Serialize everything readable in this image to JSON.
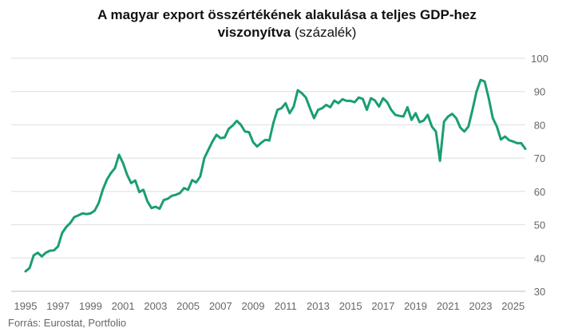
{
  "chart_data": {
    "type": "line",
    "title_bold_line1": "A magyar export összértékének alakulása a teljes GDP-hez",
    "title_bold_line2": "viszonyítva",
    "title_unit": " (százalék)",
    "source": "Forrás: Eurostat, Portfolio",
    "xlabel": "",
    "ylabel": "",
    "xlim": [
      1995,
      2025.75
    ],
    "ylim": [
      30,
      100
    ],
    "x_ticks": [
      1995,
      1997,
      1999,
      2001,
      2003,
      2005,
      2007,
      2009,
      2011,
      2013,
      2015,
      2017,
      2019,
      2021,
      2023,
      2025
    ],
    "y_ticks": [
      30,
      40,
      50,
      60,
      70,
      80,
      90,
      100
    ],
    "grid": "horizontal",
    "line_color": "#1a9e72",
    "series": [
      {
        "name": "Export / GDP",
        "points": [
          [
            1995.0,
            36.0
          ],
          [
            1995.25,
            37.0
          ],
          [
            1995.5,
            40.8
          ],
          [
            1995.75,
            41.6
          ],
          [
            1996.0,
            40.5
          ],
          [
            1996.25,
            41.6
          ],
          [
            1996.5,
            42.2
          ],
          [
            1996.75,
            42.3
          ],
          [
            1997.0,
            43.5
          ],
          [
            1997.25,
            47.5
          ],
          [
            1997.5,
            49.3
          ],
          [
            1997.75,
            50.5
          ],
          [
            1998.0,
            52.3
          ],
          [
            1998.25,
            52.8
          ],
          [
            1998.5,
            53.4
          ],
          [
            1998.75,
            53.2
          ],
          [
            1999.0,
            53.4
          ],
          [
            1999.25,
            54.2
          ],
          [
            1999.5,
            56.5
          ],
          [
            1999.75,
            60.5
          ],
          [
            2000.0,
            63.5
          ],
          [
            2000.25,
            65.5
          ],
          [
            2000.5,
            67.0
          ],
          [
            2000.75,
            71.0
          ],
          [
            2001.0,
            68.5
          ],
          [
            2001.25,
            65.0
          ],
          [
            2001.5,
            62.5
          ],
          [
            2001.75,
            63.3
          ],
          [
            2002.0,
            59.8
          ],
          [
            2002.25,
            60.5
          ],
          [
            2002.5,
            57.0
          ],
          [
            2002.75,
            55.0
          ],
          [
            2003.0,
            55.4
          ],
          [
            2003.25,
            54.8
          ],
          [
            2003.5,
            57.4
          ],
          [
            2003.75,
            57.8
          ],
          [
            2004.0,
            58.7
          ],
          [
            2004.25,
            59.0
          ],
          [
            2004.5,
            59.5
          ],
          [
            2004.75,
            61.0
          ],
          [
            2005.0,
            60.5
          ],
          [
            2005.25,
            63.4
          ],
          [
            2005.5,
            62.7
          ],
          [
            2005.75,
            64.5
          ],
          [
            2006.0,
            70.0
          ],
          [
            2006.25,
            72.5
          ],
          [
            2006.5,
            75.0
          ],
          [
            2006.75,
            77.0
          ],
          [
            2007.0,
            76.0
          ],
          [
            2007.25,
            76.2
          ],
          [
            2007.5,
            78.8
          ],
          [
            2007.75,
            79.8
          ],
          [
            2008.0,
            81.2
          ],
          [
            2008.25,
            80.0
          ],
          [
            2008.5,
            78.0
          ],
          [
            2008.75,
            77.8
          ],
          [
            2009.0,
            74.8
          ],
          [
            2009.25,
            73.5
          ],
          [
            2009.5,
            74.6
          ],
          [
            2009.75,
            75.5
          ],
          [
            2010.0,
            75.3
          ],
          [
            2010.25,
            80.6
          ],
          [
            2010.5,
            84.5
          ],
          [
            2010.75,
            85.0
          ],
          [
            2011.0,
            86.5
          ],
          [
            2011.25,
            83.5
          ],
          [
            2011.5,
            85.5
          ],
          [
            2011.75,
            90.4
          ],
          [
            2012.0,
            89.5
          ],
          [
            2012.25,
            88.2
          ],
          [
            2012.5,
            85.0
          ],
          [
            2012.75,
            82.0
          ],
          [
            2013.0,
            84.5
          ],
          [
            2013.25,
            85.0
          ],
          [
            2013.5,
            86.0
          ],
          [
            2013.75,
            85.3
          ],
          [
            2014.0,
            87.3
          ],
          [
            2014.25,
            86.5
          ],
          [
            2014.5,
            87.7
          ],
          [
            2014.75,
            87.2
          ],
          [
            2015.0,
            87.2
          ],
          [
            2015.25,
            86.8
          ],
          [
            2015.5,
            88.2
          ],
          [
            2015.75,
            87.8
          ],
          [
            2016.0,
            84.5
          ],
          [
            2016.25,
            88.0
          ],
          [
            2016.5,
            87.3
          ],
          [
            2016.75,
            85.5
          ],
          [
            2017.0,
            88.0
          ],
          [
            2017.25,
            86.8
          ],
          [
            2017.5,
            84.5
          ],
          [
            2017.75,
            83.0
          ],
          [
            2018.0,
            82.7
          ],
          [
            2018.25,
            82.5
          ],
          [
            2018.5,
            85.3
          ],
          [
            2018.75,
            81.5
          ],
          [
            2019.0,
            83.5
          ],
          [
            2019.25,
            80.8
          ],
          [
            2019.5,
            81.3
          ],
          [
            2019.75,
            83.0
          ],
          [
            2020.0,
            79.5
          ],
          [
            2020.25,
            78.0
          ],
          [
            2020.5,
            69.2
          ],
          [
            2020.75,
            81.0
          ],
          [
            2021.0,
            82.5
          ],
          [
            2021.25,
            83.3
          ],
          [
            2021.5,
            82.0
          ],
          [
            2021.75,
            79.2
          ],
          [
            2022.0,
            78.0
          ],
          [
            2022.25,
            79.5
          ],
          [
            2022.5,
            84.5
          ],
          [
            2022.75,
            90.0
          ],
          [
            2023.0,
            93.5
          ],
          [
            2023.25,
            93.0
          ],
          [
            2023.5,
            88.0
          ],
          [
            2023.75,
            82.0
          ],
          [
            2024.0,
            79.5
          ],
          [
            2024.25,
            75.6
          ],
          [
            2024.5,
            76.5
          ],
          [
            2024.75,
            75.4
          ],
          [
            2025.0,
            75.0
          ],
          [
            2025.25,
            74.5
          ],
          [
            2025.5,
            74.5
          ],
          [
            2025.75,
            72.8
          ]
        ]
      }
    ]
  }
}
